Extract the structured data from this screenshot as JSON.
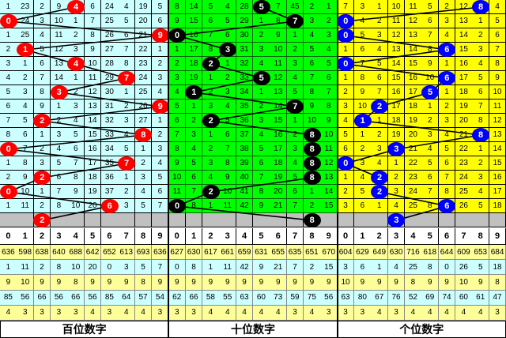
{
  "header_digits": [
    "0",
    "1",
    "2",
    "3",
    "4",
    "5",
    "6",
    "7",
    "8",
    "9"
  ],
  "colors": {
    "hundreds_bg": "#ccffff",
    "tens_bg": "#00ff00",
    "units_bg": "#ffff00",
    "pending_row": "#c0c0c0",
    "hundreds_ball": "#ff0000",
    "tens_ball": "#000000",
    "units_ball": "#0000ff",
    "stat_yellow": "#ffff99",
    "stat_cyan": "#ccffff"
  },
  "sections": [
    {
      "label": "百位数字",
      "hits": [
        4,
        0,
        9,
        1,
        4,
        7,
        3,
        9,
        2,
        8,
        0,
        7,
        2,
        0,
        6,
        2
      ],
      "rows": [
        [
          1,
          23,
          2,
          9,
          4,
          6,
          24,
          4,
          19,
          5
        ],
        [
          0,
          24,
          3,
          10,
          1,
          7,
          25,
          5,
          20,
          6
        ],
        [
          1,
          25,
          4,
          11,
          2,
          8,
          26,
          6,
          21,
          9
        ],
        [
          2,
          1,
          5,
          12,
          3,
          9,
          27,
          7,
          22,
          1
        ],
        [
          3,
          1,
          6,
          13,
          4,
          10,
          28,
          8,
          23,
          2
        ],
        [
          4,
          2,
          7,
          14,
          1,
          11,
          29,
          7,
          24,
          3
        ],
        [
          5,
          3,
          8,
          3,
          2,
          12,
          30,
          1,
          25,
          4
        ],
        [
          6,
          4,
          9,
          1,
          3,
          13,
          31,
          2,
          26,
          9
        ],
        [
          7,
          5,
          2,
          2,
          4,
          14,
          32,
          3,
          27,
          1
        ],
        [
          8,
          6,
          1,
          3,
          5,
          15,
          33,
          4,
          8,
          2
        ],
        [
          0,
          7,
          2,
          4,
          6,
          16,
          34,
          5,
          1,
          3
        ],
        [
          1,
          8,
          3,
          5,
          7,
          17,
          35,
          7,
          2,
          4
        ],
        [
          2,
          9,
          2,
          6,
          8,
          18,
          36,
          1,
          3,
          5
        ],
        [
          0,
          10,
          1,
          7,
          9,
          19,
          37,
          2,
          4,
          6
        ],
        [
          1,
          11,
          2,
          8,
          10,
          20,
          6,
          3,
          5,
          7
        ]
      ],
      "stats": [
        [
          636,
          598,
          638,
          640,
          688,
          642,
          652,
          613,
          693,
          636
        ],
        [
          1,
          11,
          2,
          8,
          10,
          20,
          0,
          3,
          5,
          7
        ],
        [
          9,
          10,
          9,
          9,
          8,
          9,
          9,
          9,
          8,
          9
        ],
        [
          85,
          56,
          66,
          56,
          66,
          56,
          85,
          64,
          57,
          54
        ],
        [
          4,
          3,
          3,
          3,
          3,
          4,
          3,
          4,
          4,
          3
        ]
      ]
    },
    {
      "label": "十位数字",
      "hits": [
        5,
        7,
        0,
        3,
        2,
        5,
        1,
        7,
        2,
        8,
        8,
        8,
        8,
        2,
        0,
        8
      ],
      "rows": [
        [
          8,
          14,
          5,
          4,
          28,
          5,
          7,
          45,
          2,
          1
        ],
        [
          9,
          15,
          6,
          5,
          29,
          1,
          8,
          7,
          3,
          2
        ],
        [
          0,
          16,
          7,
          6,
          30,
          2,
          9,
          1,
          4,
          3
        ],
        [
          1,
          17,
          8,
          3,
          31,
          3,
          10,
          2,
          5,
          4
        ],
        [
          2,
          18,
          2,
          1,
          32,
          4,
          11,
          3,
          6,
          5
        ],
        [
          3,
          19,
          1,
          2,
          33,
          5,
          12,
          4,
          7,
          6
        ],
        [
          4,
          1,
          2,
          3,
          34,
          1,
          13,
          5,
          8,
          7
        ],
        [
          5,
          1,
          3,
          4,
          35,
          2,
          14,
          7,
          9,
          8
        ],
        [
          6,
          2,
          2,
          5,
          36,
          3,
          15,
          1,
          10,
          9
        ],
        [
          7,
          3,
          1,
          6,
          37,
          4,
          16,
          2,
          8,
          10
        ],
        [
          8,
          4,
          2,
          7,
          38,
          5,
          17,
          3,
          8,
          11
        ],
        [
          9,
          5,
          3,
          8,
          39,
          6,
          18,
          4,
          8,
          12
        ],
        [
          10,
          6,
          4,
          9,
          40,
          7,
          19,
          5,
          8,
          13
        ],
        [
          11,
          7,
          2,
          10,
          41,
          8,
          20,
          6,
          1,
          14
        ],
        [
          0,
          8,
          1,
          11,
          42,
          9,
          21,
          7,
          2,
          15
        ]
      ],
      "stats": [
        [
          627,
          630,
          617,
          661,
          659,
          631,
          655,
          635,
          651,
          670
        ],
        [
          0,
          8,
          1,
          11,
          42,
          9,
          21,
          7,
          2,
          15
        ],
        [
          9,
          9,
          9,
          9,
          9,
          9,
          9,
          9,
          9,
          9
        ],
        [
          62,
          66,
          58,
          55,
          63,
          60,
          73,
          59,
          75,
          56
        ],
        [
          3,
          3,
          4,
          4,
          4,
          4,
          4,
          3,
          4,
          3
        ]
      ]
    },
    {
      "label": "个位数字",
      "hits": [
        8,
        0,
        0,
        6,
        0,
        6,
        5,
        2,
        1,
        8,
        3,
        0,
        2,
        2,
        6,
        3
      ],
      "rows": [
        [
          7,
          3,
          1,
          10,
          11,
          5,
          2,
          12,
          8,
          4
        ],
        [
          0,
          4,
          2,
          11,
          12,
          6,
          3,
          13,
          1,
          5
        ],
        [
          0,
          5,
          3,
          12,
          13,
          7,
          4,
          14,
          2,
          6
        ],
        [
          1,
          6,
          4,
          13,
          14,
          8,
          6,
          15,
          3,
          7
        ],
        [
          0,
          7,
          5,
          14,
          15,
          9,
          1,
          16,
          4,
          8
        ],
        [
          1,
          8,
          6,
          15,
          16,
          10,
          6,
          17,
          5,
          9
        ],
        [
          2,
          9,
          7,
          16,
          17,
          5,
          1,
          18,
          6,
          10
        ],
        [
          3,
          10,
          2,
          17,
          18,
          1,
          2,
          19,
          7,
          11
        ],
        [
          4,
          1,
          1,
          18,
          19,
          2,
          3,
          20,
          8,
          12
        ],
        [
          5,
          1,
          2,
          19,
          20,
          3,
          4,
          21,
          8,
          13
        ],
        [
          6,
          2,
          3,
          3,
          21,
          4,
          5,
          22,
          1,
          14
        ],
        [
          0,
          3,
          4,
          1,
          22,
          5,
          6,
          23,
          2,
          15
        ],
        [
          1,
          4,
          2,
          2,
          23,
          6,
          7,
          24,
          3,
          16
        ],
        [
          2,
          5,
          2,
          3,
          24,
          7,
          8,
          25,
          4,
          17
        ],
        [
          3,
          6,
          1,
          4,
          25,
          8,
          6,
          26,
          5,
          18
        ]
      ],
      "stats": [
        [
          604,
          629,
          649,
          630,
          716,
          618,
          644,
          609,
          653,
          684
        ],
        [
          3,
          6,
          1,
          4,
          25,
          8,
          0,
          26,
          5,
          18
        ],
        [
          10,
          9,
          9,
          9,
          8,
          9,
          9,
          10,
          9,
          8
        ],
        [
          63,
          80,
          67,
          76,
          52,
          69,
          74,
          60,
          61,
          47
        ],
        [
          3,
          3,
          4,
          3,
          4,
          4,
          4,
          4,
          4,
          3
        ]
      ]
    }
  ]
}
